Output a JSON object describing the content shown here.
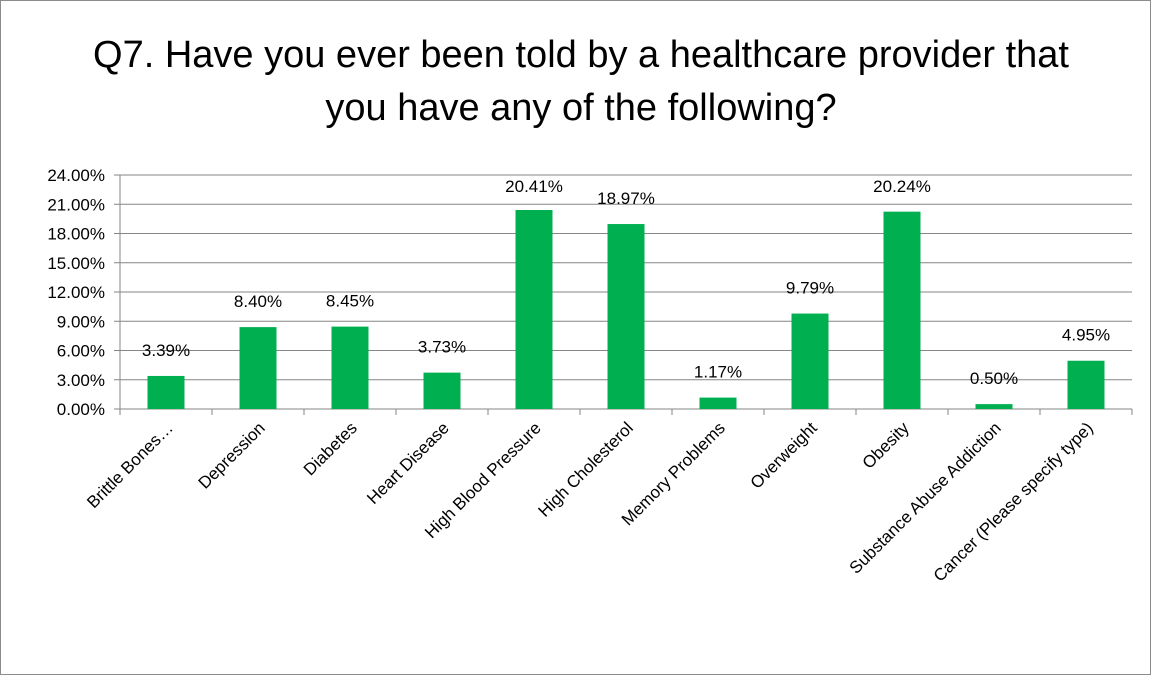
{
  "chart_data": {
    "type": "bar",
    "title": "Q7. Have you ever been told by a healthcare provider that you have any of the following?",
    "xlabel": "",
    "ylabel": "",
    "categories": [
      "Brittle Bones…",
      "Depression",
      "Diabetes",
      "Heart Disease",
      "High Blood Pressure",
      "High Cholesterol",
      "Memory Problems",
      "Overweight",
      "Obesity",
      "Substance Abuse Addiction",
      "Cancer (Please specify type)"
    ],
    "values": [
      3.39,
      8.4,
      8.45,
      3.73,
      20.41,
      18.97,
      1.17,
      9.79,
      20.24,
      0.5,
      4.95
    ],
    "data_labels": [
      "3.39%",
      "8.40%",
      "8.45%",
      "3.73%",
      "20.41%",
      "18.97%",
      "1.17%",
      "9.79%",
      "20.24%",
      "0.50%",
      "4.95%"
    ],
    "ylim": [
      0,
      24
    ],
    "yticks": [
      0,
      3,
      6,
      9,
      12,
      15,
      18,
      21,
      24
    ],
    "ytick_labels": [
      "0.00%",
      "3.00%",
      "6.00%",
      "9.00%",
      "12.00%",
      "15.00%",
      "18.00%",
      "21.00%",
      "24.00%"
    ],
    "grid": true,
    "legend": "none",
    "colors": {
      "bar": "#00b050",
      "grid": "#868686",
      "axis": "#868686"
    }
  }
}
